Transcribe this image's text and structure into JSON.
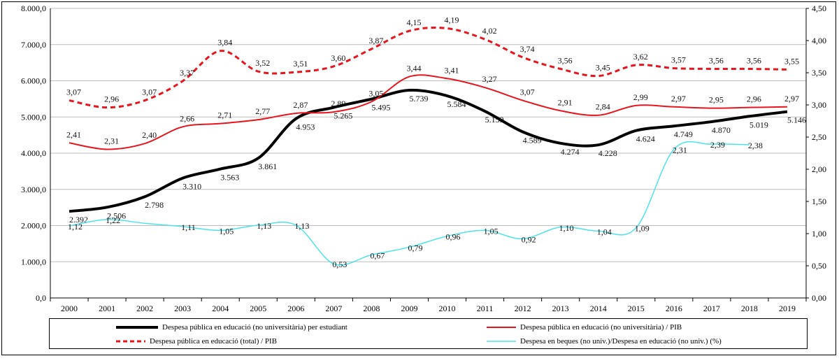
{
  "chart_data": {
    "type": "line",
    "x": [
      "2000",
      "2001",
      "2002",
      "2003",
      "2004",
      "2005",
      "2006",
      "2007",
      "2008",
      "2009",
      "2010",
      "2011",
      "2012",
      "2013",
      "2014",
      "2015",
      "2016",
      "2017",
      "2018",
      "2019"
    ],
    "y_left": {
      "ylim": [
        0,
        8000
      ],
      "ticks": [
        "0,0",
        "1.000,0",
        "2.000,0",
        "3.000,0",
        "4.000,0",
        "5.000,0",
        "6.000,0",
        "7.000,0",
        "8.000,0"
      ]
    },
    "y_right": {
      "ylim": [
        0,
        4.5
      ],
      "ticks": [
        "0,00",
        "0,50",
        "1,00",
        "1,50",
        "2,00",
        "2,50",
        "3,00",
        "3,50",
        "4,00",
        "4,50"
      ]
    },
    "grid": true,
    "legend_position": "bottom",
    "series": [
      {
        "name": "Despesa pública en educació (no universitària) per estudiant",
        "axis": "left",
        "color": "#000000",
        "style": "solid-thick",
        "values": [
          2392,
          2506,
          2798,
          3310,
          3563,
          3861,
          4953,
          5265,
          5495,
          5739,
          5584,
          5159,
          4589,
          4274,
          4228,
          4624,
          4749,
          4870,
          5019,
          5146
        ],
        "labels": [
          "2.392",
          "2.506",
          "2.798",
          "3.310",
          "3.563",
          "3.861",
          "4.953",
          "5.265",
          "5.495",
          "5.739",
          "5.584",
          "5.159",
          "4.589",
          "4.274",
          "4.228",
          "4.624",
          "4.749",
          "4.870",
          "5.019",
          "5.146"
        ]
      },
      {
        "name": "Despesa pública en educació (no universitària) / PIB",
        "axis": "right",
        "color": "#e8141e",
        "style": "solid",
        "values": [
          2.41,
          2.31,
          2.4,
          2.66,
          2.71,
          2.77,
          2.87,
          2.89,
          3.05,
          3.44,
          3.41,
          3.27,
          3.07,
          2.91,
          2.84,
          2.99,
          2.97,
          2.95,
          2.96,
          2.97
        ],
        "labels": [
          "2,41",
          "2,31",
          "2,40",
          "2,66",
          "2,71",
          "2,77",
          "2,87",
          "2,89",
          "3,05",
          "3,44",
          "3,41",
          "3,27",
          "3,07",
          "2,91",
          "2,84",
          "2,99",
          "2,97",
          "2,95",
          "2,96",
          "2,97"
        ]
      },
      {
        "name": "Despesa pública en educació (total) / PIB",
        "axis": "right",
        "color": "#e8141e",
        "style": "dashed",
        "values": [
          3.07,
          2.96,
          3.07,
          3.37,
          3.84,
          3.52,
          3.51,
          3.6,
          3.87,
          4.15,
          4.19,
          4.02,
          3.74,
          3.56,
          3.45,
          3.62,
          3.57,
          3.56,
          3.56,
          3.55
        ],
        "labels": [
          "3,07",
          "2,96",
          "3,07",
          "3,37",
          "3,84",
          "3,52",
          "3,51",
          "3,60",
          "3,87",
          "4,15",
          "4,19",
          "4,02",
          "3,74",
          "3,56",
          "3,45",
          "3,62",
          "3,57",
          "3,56",
          "3,56",
          "3,55"
        ]
      },
      {
        "name": "Despesa en beques (no univ.)/Despesa en educació (no univ.) (%)",
        "axis": "right",
        "color": "#4fe3e8",
        "style": "solid-thin",
        "values": [
          1.12,
          1.22,
          1.16,
          1.11,
          1.05,
          1.13,
          1.13,
          0.53,
          0.67,
          0.79,
          0.96,
          1.05,
          0.92,
          1.1,
          1.04,
          1.09,
          2.31,
          2.39,
          2.38,
          null
        ],
        "labels": [
          "1,12",
          "1,22",
          "",
          "1,11",
          "1,05",
          "1,13",
          "1,13",
          "0,53",
          "0,67",
          "0,79",
          "0,96",
          "1,05",
          "0,92",
          "1,10",
          "1,04",
          "1,09",
          "2,31",
          "2,39",
          "2,38",
          ""
        ]
      }
    ]
  },
  "legend": {
    "black": "Despesa pública en educació (no universitària) per estudiant",
    "red_solid": "Despesa pública en educació (no universitària) / PIB",
    "red_dashed": "Despesa pública en educació (total) / PIB",
    "cyan": "Despesa en beques (no univ.)/Despesa en educació (no univ.) (%)"
  }
}
